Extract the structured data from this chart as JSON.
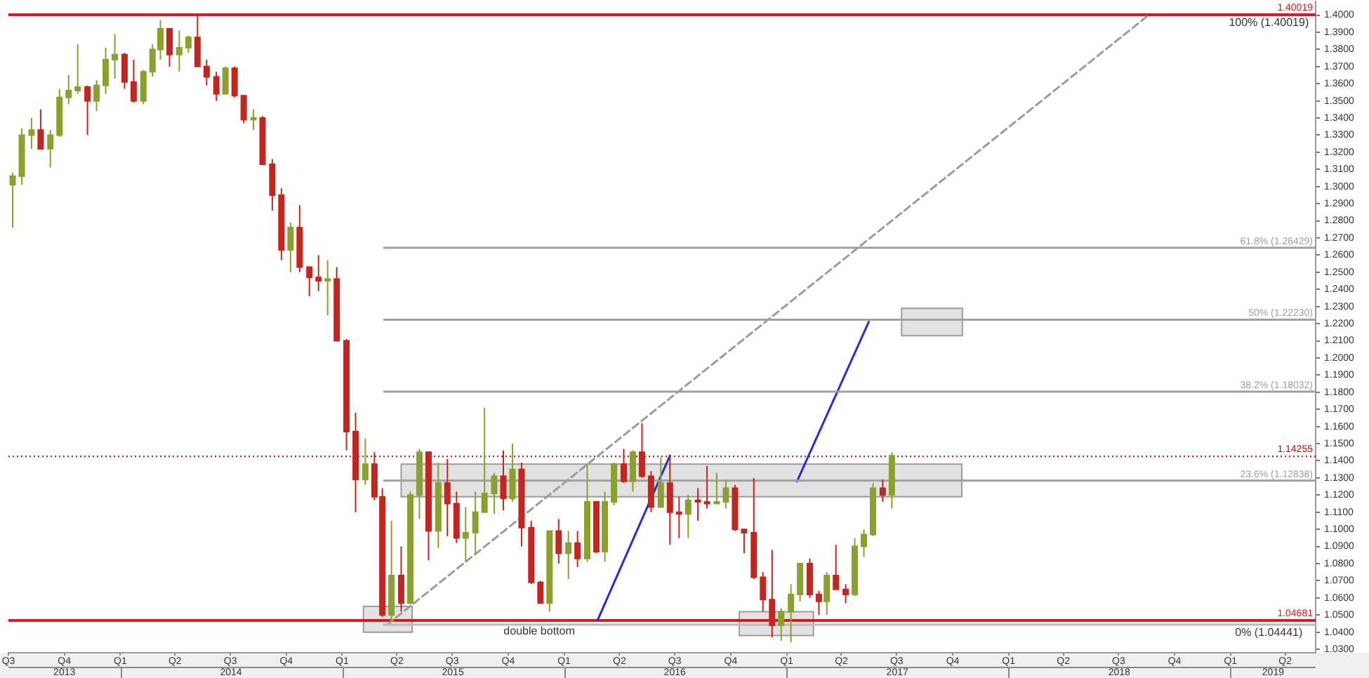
{
  "chart_data": {
    "type": "candlestick",
    "x": [
      "2013-07-08",
      "2013-07-23",
      "2013-08-08",
      "2013-08-23",
      "2013-09-08",
      "2013-09-23",
      "2013-10-08",
      "2013-10-23",
      "2013-11-08",
      "2013-11-23",
      "2013-12-08",
      "2013-12-23",
      "2014-01-08",
      "2014-01-23",
      "2014-02-08",
      "2014-02-23",
      "2014-03-08",
      "2014-03-23",
      "2014-04-08",
      "2014-04-23",
      "2014-05-08",
      "2014-05-23",
      "2014-06-08",
      "2014-06-23",
      "2014-07-08",
      "2014-07-23",
      "2014-08-08",
      "2014-08-23",
      "2014-09-08",
      "2014-09-23",
      "2014-10-08",
      "2014-10-23",
      "2014-11-08",
      "2014-11-23",
      "2014-12-08",
      "2014-12-23",
      "2015-01-08",
      "2015-01-23",
      "2015-02-08",
      "2015-02-23",
      "2015-03-08",
      "2015-03-23",
      "2015-04-08",
      "2015-04-23",
      "2015-05-08",
      "2015-05-23",
      "2015-06-08",
      "2015-06-23",
      "2015-07-08",
      "2015-07-23",
      "2015-08-08",
      "2015-08-23",
      "2015-09-08",
      "2015-09-23",
      "2015-10-08",
      "2015-10-23",
      "2015-11-08",
      "2015-11-23",
      "2015-12-08",
      "2015-12-23",
      "2016-01-08",
      "2016-01-23",
      "2016-02-08",
      "2016-02-23",
      "2016-03-08",
      "2016-03-23",
      "2016-04-08",
      "2016-04-23",
      "2016-05-08",
      "2016-05-23",
      "2016-06-08",
      "2016-06-23",
      "2016-07-08",
      "2016-07-23",
      "2016-08-08",
      "2016-08-23",
      "2016-09-08",
      "2016-09-23",
      "2016-10-08",
      "2016-10-23",
      "2016-11-08",
      "2016-11-23",
      "2016-12-08",
      "2016-12-23",
      "2017-01-08",
      "2017-01-23",
      "2017-02-08",
      "2017-02-23",
      "2017-03-08",
      "2017-03-23",
      "2017-04-08",
      "2017-04-23",
      "2017-05-08",
      "2017-05-23",
      "2017-06-08",
      "2017-06-23"
    ],
    "ohlc": [
      [
        1.301,
        1.308,
        1.276,
        1.306
      ],
      [
        1.306,
        1.334,
        1.301,
        1.33
      ],
      [
        1.33,
        1.34,
        1.322,
        1.333
      ],
      [
        1.333,
        1.345,
        1.322,
        1.322
      ],
      [
        1.322,
        1.333,
        1.311,
        1.33
      ],
      [
        1.33,
        1.357,
        1.329,
        1.352
      ],
      [
        1.352,
        1.365,
        1.348,
        1.356
      ],
      [
        1.356,
        1.383,
        1.354,
        1.358
      ],
      [
        1.358,
        1.359,
        1.33,
        1.35
      ],
      [
        1.35,
        1.362,
        1.344,
        1.359
      ],
      [
        1.359,
        1.381,
        1.354,
        1.374
      ],
      [
        1.374,
        1.389,
        1.363,
        1.377
      ],
      [
        1.377,
        1.378,
        1.357,
        1.361
      ],
      [
        1.361,
        1.374,
        1.349,
        1.35
      ],
      [
        1.35,
        1.368,
        1.348,
        1.367
      ],
      [
        1.367,
        1.383,
        1.364,
        1.38
      ],
      [
        1.38,
        1.397,
        1.374,
        1.392
      ],
      [
        1.392,
        1.392,
        1.37,
        1.377
      ],
      [
        1.377,
        1.391,
        1.367,
        1.381
      ],
      [
        1.381,
        1.388,
        1.378,
        1.387
      ],
      [
        1.387,
        1.4,
        1.37,
        1.37
      ],
      [
        1.37,
        1.374,
        1.359,
        1.364
      ],
      [
        1.364,
        1.367,
        1.35,
        1.354
      ],
      [
        1.354,
        1.37,
        1.354,
        1.369
      ],
      [
        1.369,
        1.37,
        1.352,
        1.353
      ],
      [
        1.353,
        1.353,
        1.337,
        1.339
      ],
      [
        1.339,
        1.345,
        1.333,
        1.34
      ],
      [
        1.34,
        1.341,
        1.313,
        1.313
      ],
      [
        1.313,
        1.316,
        1.286,
        1.295
      ],
      [
        1.295,
        1.299,
        1.257,
        1.263
      ],
      [
        1.263,
        1.279,
        1.25,
        1.276
      ],
      [
        1.276,
        1.289,
        1.25,
        1.253
      ],
      [
        1.253,
        1.253,
        1.236,
        1.247
      ],
      [
        1.247,
        1.26,
        1.239,
        1.245
      ],
      [
        1.245,
        1.257,
        1.225,
        1.246
      ],
      [
        1.246,
        1.253,
        1.21,
        1.21
      ],
      [
        1.21,
        1.211,
        1.146,
        1.157
      ],
      [
        1.157,
        1.168,
        1.11,
        1.129
      ],
      [
        1.129,
        1.153,
        1.126,
        1.138
      ],
      [
        1.138,
        1.145,
        1.117,
        1.119
      ],
      [
        1.119,
        1.124,
        1.049,
        1.05
      ],
      [
        1.05,
        1.105,
        1.046,
        1.073
      ],
      [
        1.073,
        1.09,
        1.052,
        1.057
      ],
      [
        1.057,
        1.122,
        1.056,
        1.12
      ],
      [
        1.12,
        1.147,
        1.106,
        1.145
      ],
      [
        1.145,
        1.145,
        1.082,
        1.099
      ],
      [
        1.099,
        1.139,
        1.089,
        1.127
      ],
      [
        1.127,
        1.141,
        1.096,
        1.115
      ],
      [
        1.115,
        1.122,
        1.092,
        1.095
      ],
      [
        1.095,
        1.113,
        1.081,
        1.098
      ],
      [
        1.098,
        1.122,
        1.085,
        1.11
      ],
      [
        1.11,
        1.171,
        1.11,
        1.121
      ],
      [
        1.121,
        1.133,
        1.109,
        1.131
      ],
      [
        1.131,
        1.146,
        1.111,
        1.118
      ],
      [
        1.118,
        1.15,
        1.116,
        1.135
      ],
      [
        1.135,
        1.139,
        1.09,
        1.101
      ],
      [
        1.101,
        1.105,
        1.068,
        1.069
      ],
      [
        1.069,
        1.07,
        1.057,
        1.057
      ],
      [
        1.057,
        1.099,
        1.052,
        1.099
      ],
      [
        1.099,
        1.106,
        1.08,
        1.086
      ],
      [
        1.086,
        1.099,
        1.071,
        1.092
      ],
      [
        1.092,
        1.099,
        1.078,
        1.083
      ],
      [
        1.083,
        1.138,
        1.081,
        1.116
      ],
      [
        1.116,
        1.116,
        1.086,
        1.087
      ],
      [
        1.087,
        1.122,
        1.081,
        1.116
      ],
      [
        1.116,
        1.139,
        1.114,
        1.138
      ],
      [
        1.138,
        1.147,
        1.127,
        1.128
      ],
      [
        1.128,
        1.146,
        1.122,
        1.145
      ],
      [
        1.145,
        1.162,
        1.13,
        1.131
      ],
      [
        1.131,
        1.134,
        1.11,
        1.113
      ],
      [
        1.113,
        1.142,
        1.113,
        1.127
      ],
      [
        1.127,
        1.143,
        1.091,
        1.11
      ],
      [
        1.11,
        1.119,
        1.095,
        1.109
      ],
      [
        1.109,
        1.12,
        1.095,
        1.117
      ],
      [
        1.117,
        1.124,
        1.105,
        1.116
      ],
      [
        1.116,
        1.137,
        1.112,
        1.115
      ],
      [
        1.115,
        1.133,
        1.115,
        1.116
      ],
      [
        1.116,
        1.129,
        1.112,
        1.124
      ],
      [
        1.124,
        1.126,
        1.099,
        1.1
      ],
      [
        1.1,
        1.1,
        1.086,
        1.098
      ],
      [
        1.098,
        1.13,
        1.071,
        1.072
      ],
      [
        1.072,
        1.075,
        1.052,
        1.059
      ],
      [
        1.059,
        1.088,
        1.037,
        1.044
      ],
      [
        1.044,
        1.054,
        1.035,
        1.052
      ],
      [
        1.052,
        1.068,
        1.034,
        1.062
      ],
      [
        1.062,
        1.08,
        1.058,
        1.08
      ],
      [
        1.08,
        1.083,
        1.06,
        1.062
      ],
      [
        1.062,
        1.064,
        1.05,
        1.058
      ],
      [
        1.058,
        1.075,
        1.05,
        1.073
      ],
      [
        1.073,
        1.091,
        1.065,
        1.065
      ],
      [
        1.065,
        1.068,
        1.057,
        1.062
      ],
      [
        1.062,
        1.095,
        1.061,
        1.09
      ],
      [
        1.09,
        1.1,
        1.084,
        1.097
      ],
      [
        1.097,
        1.127,
        1.096,
        1.124
      ],
      [
        1.124,
        1.129,
        1.116,
        1.12
      ],
      [
        1.12,
        1.145,
        1.112,
        1.143
      ]
    ],
    "colors": [
      "#8aa12e",
      "#8aa12e",
      "#8aa12e",
      "#c3261f",
      "#8aa12e",
      "#8aa12e",
      "#8aa12e",
      "#8aa12e",
      "#c3261f",
      "#8aa12e",
      "#8aa12e",
      "#8aa12e",
      "#c3261f",
      "#c3261f",
      "#8aa12e",
      "#8aa12e",
      "#8aa12e",
      "#c3261f",
      "#8aa12e",
      "#8aa12e",
      "#c3261f",
      "#c3261f",
      "#c3261f",
      "#8aa12e",
      "#c3261f",
      "#c3261f",
      "#8aa12e",
      "#c3261f",
      "#c3261f",
      "#c3261f",
      "#8aa12e",
      "#c3261f",
      "#c3261f",
      "#c3261f",
      "#8aa12e",
      "#c3261f",
      "#c3261f",
      "#c3261f",
      "#8aa12e",
      "#c3261f",
      "#c3261f",
      "#8aa12e",
      "#c3261f",
      "#8aa12e",
      "#8aa12e",
      "#c3261f",
      "#8aa12e",
      "#c3261f",
      "#c3261f",
      "#8aa12e",
      "#8aa12e",
      "#8aa12e",
      "#8aa12e",
      "#c3261f",
      "#8aa12e",
      "#c3261f",
      "#c3261f",
      "#c3261f",
      "#8aa12e",
      "#c3261f",
      "#8aa12e",
      "#c3261f",
      "#8aa12e",
      "#c3261f",
      "#8aa12e",
      "#8aa12e",
      "#c3261f",
      "#8aa12e",
      "#c3261f",
      "#c3261f",
      "#8aa12e",
      "#c3261f",
      "#c3261f",
      "#8aa12e",
      "#c3261f",
      "#c3261f",
      "#8aa12e",
      "#8aa12e",
      "#c3261f",
      "#c3261f",
      "#c3261f",
      "#c3261f",
      "#c3261f",
      "#8aa12e",
      "#8aa12e",
      "#8aa12e",
      "#c3261f",
      "#c3261f",
      "#8aa12e",
      "#c3261f",
      "#c3261f",
      "#8aa12e",
      "#8aa12e",
      "#8aa12e",
      "#c3261f",
      "#8aa12e"
    ],
    "series": [
      {
        "type": "area",
        "color": "#e2e2e2",
        "x": [
          "2015-02-05",
          "2015-04-26",
          "2015-04-26",
          "2015-02-05",
          "2015-02-05"
        ],
        "values": [
          1.055,
          1.055,
          1.04,
          1.04,
          1.055
        ]
      },
      {
        "type": "area",
        "color": "#e2e2e2",
        "x": [
          "2015-04-08",
          "2017-10-16",
          "2017-10-16",
          "2015-04-08",
          "2015-04-08"
        ],
        "values": [
          1.138,
          1.138,
          1.119,
          1.119,
          1.138
        ]
      },
      {
        "type": "area",
        "color": "#e2e2e2",
        "x": [
          "2016-10-15",
          "2017-02-14",
          "2017-02-14",
          "2016-10-15",
          "2016-10-15"
        ],
        "values": [
          1.052,
          1.052,
          1.038,
          1.038,
          1.052
        ]
      },
      {
        "type": "area",
        "color": "#e2e2e2",
        "x": [
          "2017-07-09",
          "2017-10-17",
          "2017-10-17",
          "2017-07-09",
          "2017-07-09"
        ],
        "values": [
          1.229,
          1.229,
          1.213,
          1.213,
          1.229
        ]
      },
      {
        "type": "line",
        "name": "61.8% (1.26429)",
        "color": "#a0a0a0",
        "x": [
          "2015-03-11",
          "2019-05-21"
        ],
        "values": [
          1.26429,
          1.26429
        ]
      },
      {
        "type": "line",
        "name": "50% (1.22230)",
        "color": "#a0a0a0",
        "x": [
          "2015-03-11",
          "2019-05-21"
        ],
        "values": [
          1.2223,
          1.2223
        ]
      },
      {
        "type": "line",
        "name": "38.2% (1.18032)",
        "color": "#a0a0a0",
        "x": [
          "2015-03-11",
          "2019-05-21"
        ],
        "values": [
          1.18032,
          1.18032
        ]
      },
      {
        "type": "line",
        "name": "23.6% (1.12838)",
        "color": "#a0a0a0",
        "x": [
          "2015-03-11",
          "2019-05-21"
        ],
        "values": [
          1.12838,
          1.12838
        ]
      },
      {
        "type": "line",
        "color": "#c8b4b4",
        "x": [
          "2015-03-11",
          "2019-05-21"
        ],
        "values": [
          1.04441,
          1.04441
        ]
      },
      {
        "type": "line",
        "color": "#9a9a9a",
        "line_style": "dashed",
        "x": [
          "2015-03-16",
          "2018-08-20"
        ],
        "values": [
          1.04441,
          1.40019
        ]
      },
      {
        "type": "line",
        "color": "#2a2ad6",
        "x": [
          "2016-02-25",
          "2016-06-23"
        ],
        "values": [
          1.047,
          1.143
        ]
      },
      {
        "type": "line",
        "color": "#2a2ad6",
        "x": [
          "2017-01-18",
          "2017-05-16"
        ],
        "values": [
          1.128,
          1.221
        ]
      }
    ],
    "ref_lines": [
      {
        "axis": "y",
        "value": 1.40019,
        "label": "1.40019",
        "color": "#e3141b"
      },
      {
        "axis": "y",
        "value": 1.04681,
        "label": "1.04681",
        "color": "#e3141b"
      },
      {
        "axis": "y",
        "value": 1.14255,
        "label": "1.14255",
        "color": "#c00000",
        "line_style": "dotted"
      }
    ],
    "annotations": [
      {
        "text": "100% (1.40019)",
        "x": "2019-03-05",
        "y": 1.40019
      },
      {
        "text": "0% (1.04441)",
        "x": "2019-03-05",
        "y": 1.04441
      },
      {
        "text": "double bottom",
        "x": "2015-11-21",
        "y": 1.0453
      }
    ],
    "xlim": [
      "2013-07-01",
      "2019-05-21"
    ],
    "xticks": [
      {
        "value": "2013-07-01",
        "label": "Q3"
      },
      {
        "value": "2013-10-01",
        "label": "Q4"
      },
      {
        "value": "2014-01-01",
        "label": "Q1"
      },
      {
        "value": "2014-04-01",
        "label": "Q2"
      },
      {
        "value": "2014-07-01",
        "label": "Q3"
      },
      {
        "value": "2014-10-01",
        "label": "Q4"
      },
      {
        "value": "2015-01-01",
        "label": "Q1"
      },
      {
        "value": "2015-04-01",
        "label": "Q2"
      },
      {
        "value": "2015-07-01",
        "label": "Q3"
      },
      {
        "value": "2015-10-01",
        "label": "Q4"
      },
      {
        "value": "2016-01-01",
        "label": "Q1"
      },
      {
        "value": "2016-04-01",
        "label": "Q2"
      },
      {
        "value": "2016-07-01",
        "label": "Q3"
      },
      {
        "value": "2016-10-01",
        "label": "Q4"
      },
      {
        "value": "2017-01-01",
        "label": "Q1"
      },
      {
        "value": "2017-04-01",
        "label": "Q2"
      },
      {
        "value": "2017-07-01",
        "label": "Q3"
      },
      {
        "value": "2017-10-01",
        "label": "Q4"
      },
      {
        "value": "2018-01-01",
        "label": "Q1"
      },
      {
        "value": "2018-04-01",
        "label": "Q2"
      },
      {
        "value": "2018-07-01",
        "label": "Q3"
      },
      {
        "value": "2018-10-01",
        "label": "Q4"
      },
      {
        "value": "2019-01-01",
        "label": "Q1"
      },
      {
        "value": "2019-04-01",
        "label": "Q2"
      }
    ],
    "x2lim": [
      "2013-07-01",
      "2019-05-21"
    ],
    "x2ticks": [
      {
        "value": "2013-10-01",
        "label": "2013"
      },
      {
        "value": "2014-01-01",
        "label": null
      },
      {
        "value": "2014-07-02",
        "label": "2014"
      },
      {
        "value": "2015-01-01",
        "label": null
      },
      {
        "value": "2015-07-02",
        "label": "2015"
      },
      {
        "value": "2016-01-01",
        "label": null
      },
      {
        "value": "2016-07-01",
        "label": "2016"
      },
      {
        "value": "2017-01-01",
        "label": null
      },
      {
        "value": "2017-07-02",
        "label": "2017"
      },
      {
        "value": "2018-01-01",
        "label": null
      },
      {
        "value": "2018-07-02",
        "label": "2018"
      },
      {
        "value": "2019-01-01",
        "label": null
      },
      {
        "value": "2019-03-12",
        "label": "2019"
      }
    ],
    "ylim": [
      1.028,
      1.408
    ],
    "yticks": [
      {
        "value": 1.03,
        "label": "1.0300"
      },
      {
        "value": 1.04,
        "label": "1.0400"
      },
      {
        "value": 1.05,
        "label": "1.0500"
      },
      {
        "value": 1.06,
        "label": "1.0600"
      },
      {
        "value": 1.07,
        "label": "1.0700"
      },
      {
        "value": 1.08,
        "label": "1.0800"
      },
      {
        "value": 1.09,
        "label": "1.0900"
      },
      {
        "value": 1.1,
        "label": "1.1000"
      },
      {
        "value": 1.11,
        "label": "1.1100"
      },
      {
        "value": 1.12,
        "label": "1.1200"
      },
      {
        "value": 1.13,
        "label": "1.1300"
      },
      {
        "value": 1.14,
        "label": "1.1400"
      },
      {
        "value": 1.15,
        "label": "1.1500"
      },
      {
        "value": 1.16,
        "label": "1.1600"
      },
      {
        "value": 1.17,
        "label": "1.1700"
      },
      {
        "value": 1.18,
        "label": "1.1800"
      },
      {
        "value": 1.19,
        "label": "1.1900"
      },
      {
        "value": 1.2,
        "label": "1.2000"
      },
      {
        "value": 1.21,
        "label": "1.2100"
      },
      {
        "value": 1.22,
        "label": "1.2200"
      },
      {
        "value": 1.23,
        "label": "1.2300"
      },
      {
        "value": 1.24,
        "label": "1.2400"
      },
      {
        "value": 1.25,
        "label": "1.2500"
      },
      {
        "value": 1.26,
        "label": "1.2600"
      },
      {
        "value": 1.27,
        "label": "1.2700"
      },
      {
        "value": 1.28,
        "label": "1.2800"
      },
      {
        "value": 1.29,
        "label": "1.2900"
      },
      {
        "value": 1.3,
        "label": "1.3000"
      },
      {
        "value": 1.31,
        "label": "1.3100"
      },
      {
        "value": 1.32,
        "label": "1.3200"
      },
      {
        "value": 1.33,
        "label": "1.3300"
      },
      {
        "value": 1.34,
        "label": "1.3400"
      },
      {
        "value": 1.35,
        "label": "1.3500"
      },
      {
        "value": 1.36,
        "label": "1.3600"
      },
      {
        "value": 1.37,
        "label": "1.3700"
      },
      {
        "value": 1.38,
        "label": "1.3800"
      },
      {
        "value": 1.39,
        "label": "1.3900"
      },
      {
        "value": 1.4,
        "label": "1.4000"
      }
    ],
    "grid": false
  }
}
